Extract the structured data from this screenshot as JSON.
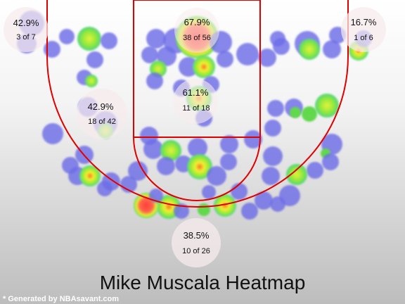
{
  "chart_data": {
    "type": "heatmap",
    "title": "Mike Muscala Heatmap",
    "zones": [
      {
        "id": "left-corner-three",
        "pct": "42.9%",
        "made_of": "3 of 7"
      },
      {
        "id": "restricted-area",
        "pct": "67.9%",
        "made_of": "38 of 56"
      },
      {
        "id": "right-corner-three",
        "pct": "16.7%",
        "made_of": "1 of 6"
      },
      {
        "id": "left-midrange",
        "pct": "42.9%",
        "made_of": "18 of 42"
      },
      {
        "id": "paint",
        "pct": "61.1%",
        "made_of": "11 of 18"
      },
      {
        "id": "top-of-key-three",
        "pct": "38.5%",
        "made_of": "10 of 26"
      }
    ]
  },
  "footer": {
    "credit": "* Generated by NBAsavant.com"
  },
  "colors": {
    "line": "#e00000",
    "cold": "#6e6ee8",
    "warm": "#ee2b2b"
  }
}
